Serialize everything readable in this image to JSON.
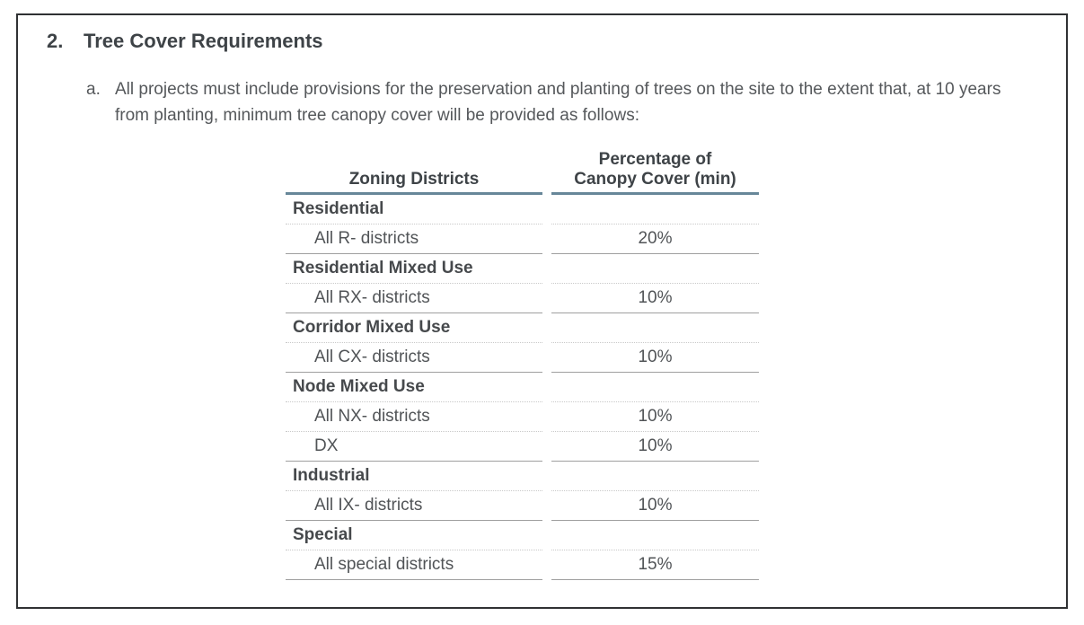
{
  "section": {
    "number": "2.",
    "title": "Tree Cover Requirements"
  },
  "item": {
    "marker": "a.",
    "text": "All projects must include provisions for the preservation and planting of trees on the site to the extent that, at 10 years from planting, minimum tree canopy cover will be provided as follows:"
  },
  "table": {
    "col1_header": "Zoning Districts",
    "col2_header_line1": "Percentage of",
    "col2_header_line2": "Canopy Cover (min)",
    "groups": [
      {
        "category": "Residential",
        "rows": [
          {
            "district": "All R- districts",
            "value": "20%"
          }
        ]
      },
      {
        "category": "Residential Mixed Use",
        "rows": [
          {
            "district": "All RX- districts",
            "value": "10%"
          }
        ]
      },
      {
        "category": "Corridor Mixed Use",
        "rows": [
          {
            "district": "All CX- districts",
            "value": "10%"
          }
        ]
      },
      {
        "category": "Node Mixed Use",
        "rows": [
          {
            "district": "All NX- districts",
            "value": "10%"
          },
          {
            "district": "DX",
            "value": "10%"
          }
        ]
      },
      {
        "category": "Industrial",
        "rows": [
          {
            "district": "All IX- districts",
            "value": "10%"
          }
        ]
      },
      {
        "category": "Special",
        "rows": [
          {
            "district": "All special districts",
            "value": "15%"
          }
        ]
      }
    ]
  },
  "colors": {
    "page_border": "#2f3133",
    "heading_text": "#3e4347",
    "body_text": "#55585b",
    "table_text": "#515457",
    "bold_text": "#46494c",
    "header_rule": "#678799",
    "group_rule": "#9f9f9f",
    "dot_rule": "#c9c9c9"
  }
}
